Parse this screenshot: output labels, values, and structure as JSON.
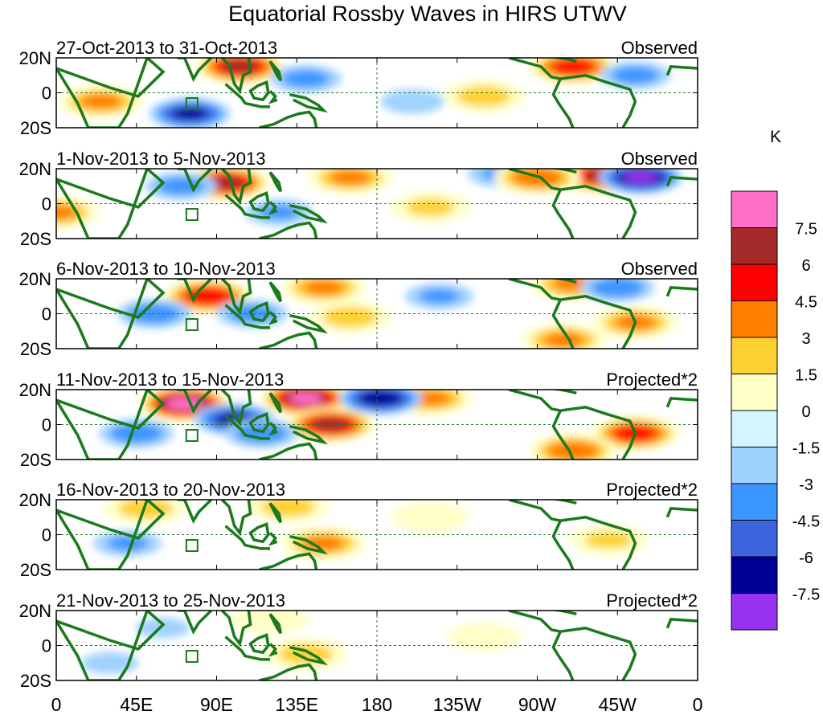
{
  "chart_data": {
    "type": "heatmap",
    "title": "Equatorial Rossby Waves in HIRS UTWV",
    "variable": "HIRS UTWV",
    "units": "K",
    "x_ticks": [
      "0",
      "45E",
      "90E",
      "135E",
      "180",
      "135W",
      "90W",
      "45W",
      "0"
    ],
    "x_range_deg": [
      0,
      360
    ],
    "y_ticks": [
      "20N",
      "0",
      "20S"
    ],
    "y_range_deg": [
      -20,
      20
    ],
    "colorbar": {
      "label": "K",
      "levels": [
        "7.5",
        "6",
        "4.5",
        "3",
        "1.5",
        "0",
        "-1.5",
        "-3",
        "-4.5",
        "-6",
        "-7.5"
      ],
      "colors": [
        "#ff6ec7",
        "#a52a2a",
        "#ff0000",
        "#ff7f00",
        "#ffd233",
        "#ffffc8",
        "#d2f5ff",
        "#a0d2ff",
        "#3c96ff",
        "#3c64dc",
        "#000096",
        "#9632f0"
      ]
    },
    "panels": [
      {
        "period": "27-Oct-2013 to 31-Oct-2013",
        "kind": "Observed",
        "blobs": [
          {
            "lon": 103,
            "lat": 15,
            "val": 7
          },
          {
            "lon": 290,
            "lat": 15,
            "val": 6
          },
          {
            "lon": 25,
            "lat": -5,
            "val": 4
          },
          {
            "lon": 240,
            "lat": -2,
            "val": 3
          },
          {
            "lon": 75,
            "lat": -12,
            "val": -6
          },
          {
            "lon": 140,
            "lat": 8,
            "val": -3.5
          },
          {
            "lon": 325,
            "lat": 10,
            "val": -3.5
          },
          {
            "lon": 200,
            "lat": -5,
            "val": -2.5
          }
        ]
      },
      {
        "period": "1-Nov-2013 to 5-Nov-2013",
        "kind": "Observed",
        "blobs": [
          {
            "lon": 95,
            "lat": 12,
            "val": 7
          },
          {
            "lon": 307,
            "lat": 16,
            "val": 7
          },
          {
            "lon": 328,
            "lat": 15,
            "val": -7.5
          },
          {
            "lon": 165,
            "lat": 15,
            "val": 4
          },
          {
            "lon": 210,
            "lat": -2,
            "val": 2.5
          },
          {
            "lon": 0,
            "lat": -5,
            "val": 4
          },
          {
            "lon": 250,
            "lat": 17,
            "val": -3
          },
          {
            "lon": 270,
            "lat": 15,
            "val": 5
          },
          {
            "lon": 70,
            "lat": 10,
            "val": -3.5
          },
          {
            "lon": 125,
            "lat": -5,
            "val": -3
          }
        ]
      },
      {
        "period": "6-Nov-2013 to 10-Nov-2013",
        "kind": "Observed",
        "blobs": [
          {
            "lon": 85,
            "lat": 10,
            "val": 6.5
          },
          {
            "lon": 150,
            "lat": 15,
            "val": 4
          },
          {
            "lon": 325,
            "lat": -5,
            "val": 4
          },
          {
            "lon": 290,
            "lat": 17,
            "val": 4
          },
          {
            "lon": 285,
            "lat": -15,
            "val": 4
          },
          {
            "lon": 165,
            "lat": -2,
            "val": 3
          },
          {
            "lon": 55,
            "lat": 0,
            "val": -4
          },
          {
            "lon": 110,
            "lat": 0,
            "val": -3.5
          },
          {
            "lon": 315,
            "lat": 15,
            "val": -4
          },
          {
            "lon": 215,
            "lat": 10,
            "val": -3
          }
        ]
      },
      {
        "period": "11-Nov-2013 to 15-Nov-2013",
        "kind": "Projected*2",
        "blobs": [
          {
            "lon": 72,
            "lat": 12,
            "val": 9
          },
          {
            "lon": 140,
            "lat": 15,
            "val": 8.5
          },
          {
            "lon": 154,
            "lat": 0,
            "val": 7
          },
          {
            "lon": 325,
            "lat": -5,
            "val": 6
          },
          {
            "lon": 210,
            "lat": 15,
            "val": 4
          },
          {
            "lon": 100,
            "lat": 3,
            "val": -6
          },
          {
            "lon": 182,
            "lat": 15,
            "val": -7
          },
          {
            "lon": 45,
            "lat": -5,
            "val": -4
          },
          {
            "lon": 290,
            "lat": -15,
            "val": 5
          },
          {
            "lon": 115,
            "lat": -5,
            "val": -4
          }
        ]
      },
      {
        "period": "16-Nov-2013 to 20-Nov-2013",
        "kind": "Projected*2",
        "blobs": [
          {
            "lon": 150,
            "lat": -5,
            "val": 4
          },
          {
            "lon": 130,
            "lat": 16,
            "val": 3
          },
          {
            "lon": 50,
            "lat": 15,
            "val": 3
          },
          {
            "lon": 310,
            "lat": -3,
            "val": 2.5
          },
          {
            "lon": 40,
            "lat": -5,
            "val": -3
          },
          {
            "lon": 210,
            "lat": 10,
            "val": 2
          }
        ]
      },
      {
        "period": "21-Nov-2013 to 25-Nov-2013",
        "kind": "Projected*2",
        "blobs": [
          {
            "lon": 140,
            "lat": -5,
            "val": 3
          },
          {
            "lon": 120,
            "lat": 15,
            "val": 2
          },
          {
            "lon": 30,
            "lat": -10,
            "val": -2
          },
          {
            "lon": 60,
            "lat": 10,
            "val": -1.8
          },
          {
            "lon": 240,
            "lat": 5,
            "val": 1.6
          }
        ]
      }
    ]
  }
}
